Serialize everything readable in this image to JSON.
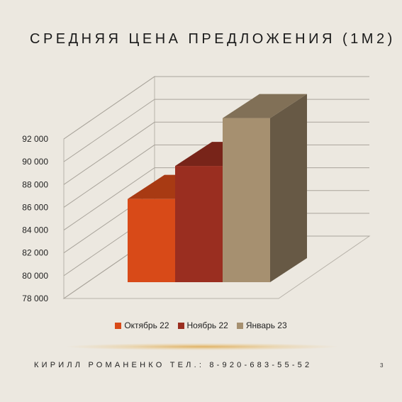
{
  "slide": {
    "title": "СРЕДНЯЯ ЦЕНА ПРЕДЛОЖЕНИЯ (1М2)",
    "footer": "КИРИЛЛ РОМАНЕНКО ТЕЛ.: 8-920-683-55-52",
    "page_number": "3"
  },
  "chart_data": {
    "type": "bar",
    "title": "",
    "xlabel": "",
    "ylabel": "",
    "ylim": [
      78000,
      92000
    ],
    "yticks": [
      78000,
      80000,
      82000,
      84000,
      86000,
      88000,
      90000,
      92000
    ],
    "ytick_labels": [
      "78 000",
      "80 000",
      "82 000",
      "84 000",
      "86 000",
      "88 000",
      "90 000",
      "92 000"
    ],
    "grid": true,
    "legend_position": "bottom",
    "three_d": true,
    "series": [
      {
        "name": "Октябрь 22",
        "value": 85300,
        "color": "#d84a18"
      },
      {
        "name": "Ноябрь 22",
        "value": 88200,
        "color": "#9a2e20"
      },
      {
        "name": "Январь 23",
        "value": 92400,
        "color": "#a69070"
      }
    ]
  }
}
